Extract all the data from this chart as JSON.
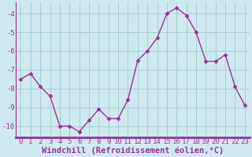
{
  "x": [
    0,
    1,
    2,
    3,
    4,
    5,
    6,
    7,
    8,
    9,
    10,
    11,
    12,
    13,
    14,
    15,
    16,
    17,
    18,
    19,
    20,
    21,
    22,
    23
  ],
  "y": [
    -7.5,
    -7.2,
    -7.9,
    -8.4,
    -10.0,
    -10.0,
    -10.3,
    -9.7,
    -9.1,
    -9.6,
    -9.6,
    -8.6,
    -6.5,
    -6.0,
    -5.3,
    -4.0,
    -3.7,
    -4.1,
    -5.0,
    -6.55,
    -6.55,
    -6.2,
    -7.9,
    -8.9
  ],
  "line_color": "#993399",
  "marker": "D",
  "marker_size": 2.5,
  "bg_color": "#ceeaee",
  "grid_color": "#aacdd4",
  "axis_color": "#993399",
  "tick_label_color": "#993399",
  "xlabel": "Windchill (Refroidissement éolien,°C)",
  "ylim": [
    -10.6,
    -3.4
  ],
  "yticks": [
    -10,
    -9,
    -8,
    -7,
    -6,
    -5,
    -4
  ],
  "xticks": [
    0,
    1,
    2,
    3,
    4,
    5,
    6,
    7,
    8,
    9,
    10,
    11,
    12,
    13,
    14,
    15,
    16,
    17,
    18,
    19,
    20,
    21,
    22,
    23
  ],
  "font_size": 6.5,
  "xlabel_font_size": 7.5,
  "border_color": "#993399",
  "border_lw": 2.0
}
